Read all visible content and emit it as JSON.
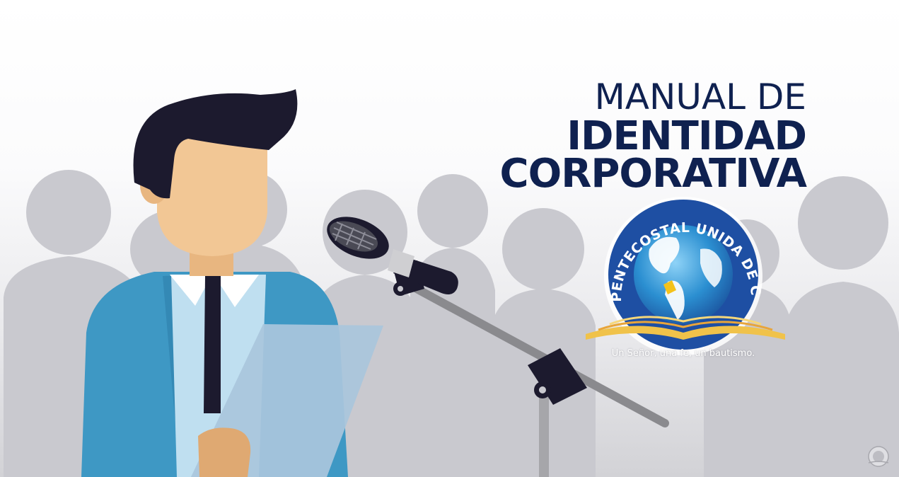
{
  "title": {
    "line1": "MANUAL DE",
    "line2": "IDENTIDAD",
    "line3": "CORPORATIVA"
  },
  "logo": {
    "ring_text": "IGLESIA PENTECOSTAL UNIDA DE COLOMBIA",
    "tagline": "Un Señor, una fe, un bautismo."
  },
  "colors": {
    "title": "#0f2150",
    "logo_ring": "#1e4fa3",
    "book": "#f0c24a",
    "shirt": "#3e98c4",
    "hair": "#1c1a2e",
    "skin": "#f2c795",
    "silhouettes": "#c9c9cf"
  },
  "icons": {
    "logo": "globe-bible-logo-icon",
    "watermark": "globe-watermark-icon",
    "microphone": "microphone-icon"
  }
}
